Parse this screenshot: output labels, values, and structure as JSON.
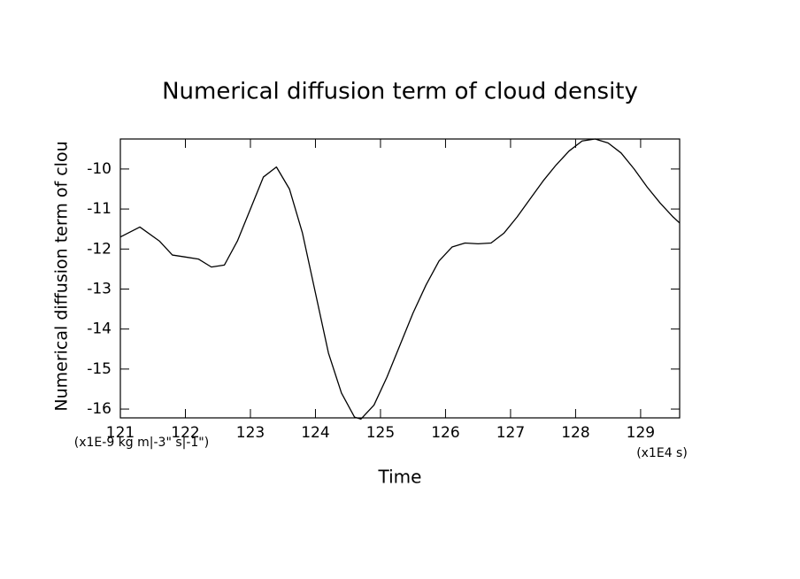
{
  "chart_data": {
    "type": "line",
    "title": "Numerical diffusion term of cloud density",
    "x_label": "Time",
    "y_label": "Numerical diffusion term of clou",
    "x_units": "(x1E4 s)",
    "y_units": "(x1E-9 kg m|-3\" s|-1\")",
    "x": [
      121.0,
      121.3,
      121.6,
      121.8,
      122.0,
      122.2,
      122.4,
      122.6,
      122.8,
      123.0,
      123.2,
      123.4,
      123.6,
      123.8,
      124.0,
      124.2,
      124.4,
      124.6,
      124.7,
      124.9,
      125.1,
      125.3,
      125.5,
      125.7,
      125.9,
      126.1,
      126.3,
      126.5,
      126.7,
      126.9,
      127.1,
      127.3,
      127.5,
      127.7,
      127.9,
      128.1,
      128.3,
      128.5,
      128.7,
      128.9,
      129.1,
      129.3,
      129.5,
      129.6
    ],
    "series": [
      {
        "color": "#000000",
        "values": [
          -11.7,
          -11.45,
          -11.8,
          -12.15,
          -12.2,
          -12.25,
          -12.45,
          -12.4,
          -11.8,
          -11.0,
          -10.2,
          -9.95,
          -10.5,
          -11.6,
          -13.1,
          -14.6,
          -15.6,
          -16.2,
          -16.25,
          -15.9,
          -15.2,
          -14.4,
          -13.6,
          -12.9,
          -12.3,
          -11.95,
          -11.85,
          -11.87,
          -11.85,
          -11.6,
          -11.2,
          -10.75,
          -10.3,
          -9.9,
          -9.55,
          -9.3,
          -9.25,
          -9.35,
          -9.6,
          -10.0,
          -10.45,
          -10.85,
          -11.2,
          -11.35
        ]
      }
    ],
    "xlim": [
      121,
      129.6
    ],
    "ylim": [
      -16.22,
      -9.25
    ],
    "xticks": [
      121,
      122,
      123,
      124,
      125,
      126,
      127,
      128,
      129
    ],
    "yticks": [
      -16,
      -15,
      -14,
      -13,
      -12,
      -11,
      -10
    ]
  }
}
